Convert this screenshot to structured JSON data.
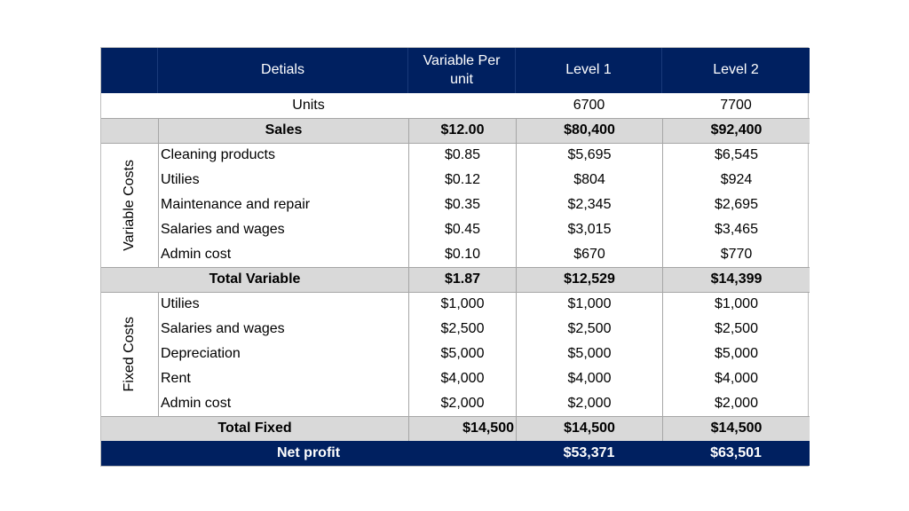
{
  "header": {
    "details": "Detials",
    "variable_per_unit": "Variable Per unit",
    "level1": "Level 1",
    "level2": "Level 2"
  },
  "units": {
    "label": "Units",
    "level1": "6700",
    "level2": "7700"
  },
  "sales": {
    "label": "Sales",
    "per_unit": "$12.00",
    "level1": "$80,400",
    "level2": "$92,400"
  },
  "variable_costs": {
    "group_label": "Variable Costs",
    "rows": [
      {
        "label": "Cleaning products",
        "per_unit": "$0.85",
        "level1": "$5,695",
        "level2": "$6,545"
      },
      {
        "label": "Utilies",
        "per_unit": "$0.12",
        "level1": "$804",
        "level2": "$924"
      },
      {
        "label": "Maintenance and repair",
        "per_unit": "$0.35",
        "level1": "$2,345",
        "level2": "$2,695"
      },
      {
        "label": "Salaries and wages",
        "per_unit": "$0.45",
        "level1": "$3,015",
        "level2": "$3,465"
      },
      {
        "label": "Admin cost",
        "per_unit": "$0.10",
        "level1": "$670",
        "level2": "$770"
      }
    ],
    "total": {
      "label": "Total Variable",
      "per_unit": "$1.87",
      "level1": "$12,529",
      "level2": "$14,399"
    }
  },
  "fixed_costs": {
    "group_label": "Fixed Costs",
    "rows": [
      {
        "label": "Utilies",
        "per_unit": "$1,000",
        "level1": "$1,000",
        "level2": "$1,000"
      },
      {
        "label": "Salaries and wages",
        "per_unit": "$2,500",
        "level1": "$2,500",
        "level2": "$2,500"
      },
      {
        "label": "Depreciation",
        "per_unit": "$5,000",
        "level1": "$5,000",
        "level2": "$5,000"
      },
      {
        "label": "Rent",
        "per_unit": "$4,000",
        "level1": "$4,000",
        "level2": "$4,000"
      },
      {
        "label": "Admin cost",
        "per_unit": "$2,000",
        "level1": "$2,000",
        "level2": "$2,000"
      }
    ],
    "total": {
      "label": "Total Fixed",
      "per_unit": "$14,500",
      "level1": "$14,500",
      "level2": "$14,500"
    }
  },
  "net_profit": {
    "label": "Net profit",
    "level1": "$53,371",
    "level2": "$63,501"
  },
  "colors": {
    "header_bg": "#002060",
    "header_text": "#ffffff",
    "total_row_bg": "#d9d9d9"
  }
}
